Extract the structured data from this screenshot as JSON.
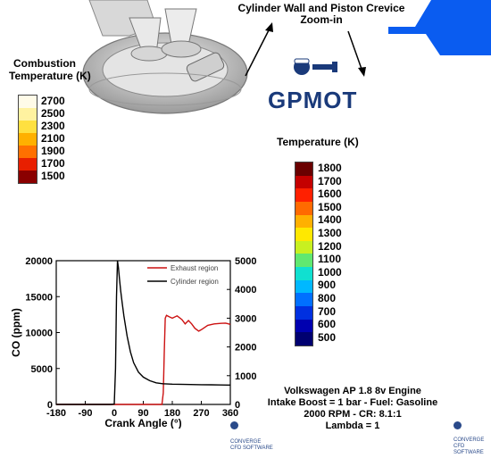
{
  "header": {
    "zoom_title_line1": "Cylinder Wall and Piston Crevice",
    "zoom_title_line2": "Zoom-in",
    "brand_logo_text": "GPMOT"
  },
  "left_colorbar": {
    "title_line1": "Combustion",
    "title_line2": "Temperature (K)",
    "ticks": [
      "2700",
      "2500",
      "2300",
      "2100",
      "1900",
      "1700",
      "1500"
    ],
    "colors": [
      "#fffbe8",
      "#fff2a0",
      "#ffe040",
      "#ffb000",
      "#ff7000",
      "#e81f00",
      "#8a0000"
    ]
  },
  "right_colorbar": {
    "title": "Temperature (K)",
    "ticks": [
      "1800",
      "1700",
      "1600",
      "1500",
      "1400",
      "1300",
      "1200",
      "1100",
      "1000",
      "900",
      "800",
      "700",
      "600",
      "500"
    ],
    "colors": [
      "#6a0000",
      "#c40000",
      "#ff2000",
      "#ff6a00",
      "#ffb000",
      "#ffe800",
      "#c8f020",
      "#60e870",
      "#10e0d0",
      "#00b8ff",
      "#0070ff",
      "#0030e0",
      "#0000b0",
      "#000070"
    ]
  },
  "engine_caption": {
    "line1": "Volkswagen AP 1.8 8v Engine",
    "line2": "Intake Boost =  1 bar - Fuel: Gasoline",
    "line3": "2000 RPM - CR: 8.1:1",
    "line4": "Lambda = 1"
  },
  "footer_logo": {
    "name": "CONVERGE",
    "sub": "CFD SOFTWARE"
  },
  "chart_data": {
    "type": "line",
    "xlabel": "Crank Angle (°)",
    "ylabel_left": "CO (ppm)",
    "xlim": [
      -180,
      360
    ],
    "ylim_left": [
      0,
      20000
    ],
    "ylim_right": [
      0,
      5000
    ],
    "x_ticks": [
      "-180",
      "-90",
      "0",
      "90",
      "180",
      "270",
      "360"
    ],
    "y_ticks_left": [
      "0",
      "5000",
      "10000",
      "15000",
      "20000"
    ],
    "y_ticks_right": [
      "0",
      "1000",
      "2000",
      "3000",
      "4000",
      "5000"
    ],
    "legend_position": "top-right",
    "series": [
      {
        "name": "Exhaust region",
        "color": "#cc1111",
        "axis": "right",
        "x": [
          -180,
          140,
          148,
          152,
          155,
          158,
          162,
          170,
          180,
          195,
          210,
          220,
          230,
          240,
          250,
          262,
          270,
          290,
          310,
          330,
          345,
          355,
          360
        ],
        "y": [
          0,
          0,
          0,
          400,
          1800,
          3000,
          3100,
          3050,
          3000,
          3080,
          2950,
          2800,
          2920,
          2800,
          2650,
          2550,
          2600,
          2750,
          2800,
          2820,
          2830,
          2800,
          2780
        ]
      },
      {
        "name": "Cylinder region",
        "color": "#000000",
        "axis": "left",
        "x": [
          -180,
          -10,
          0,
          4,
          7,
          10,
          13,
          16,
          20,
          25,
          30,
          40,
          50,
          60,
          75,
          90,
          110,
          130,
          150,
          180,
          220,
          270,
          300,
          330,
          360
        ],
        "y": [
          0,
          0,
          50,
          5000,
          15000,
          20000,
          19000,
          17500,
          15800,
          14000,
          12300,
          9500,
          7300,
          5800,
          4500,
          3800,
          3300,
          3000,
          2880,
          2820,
          2780,
          2750,
          2730,
          2710,
          2700
        ]
      }
    ]
  }
}
